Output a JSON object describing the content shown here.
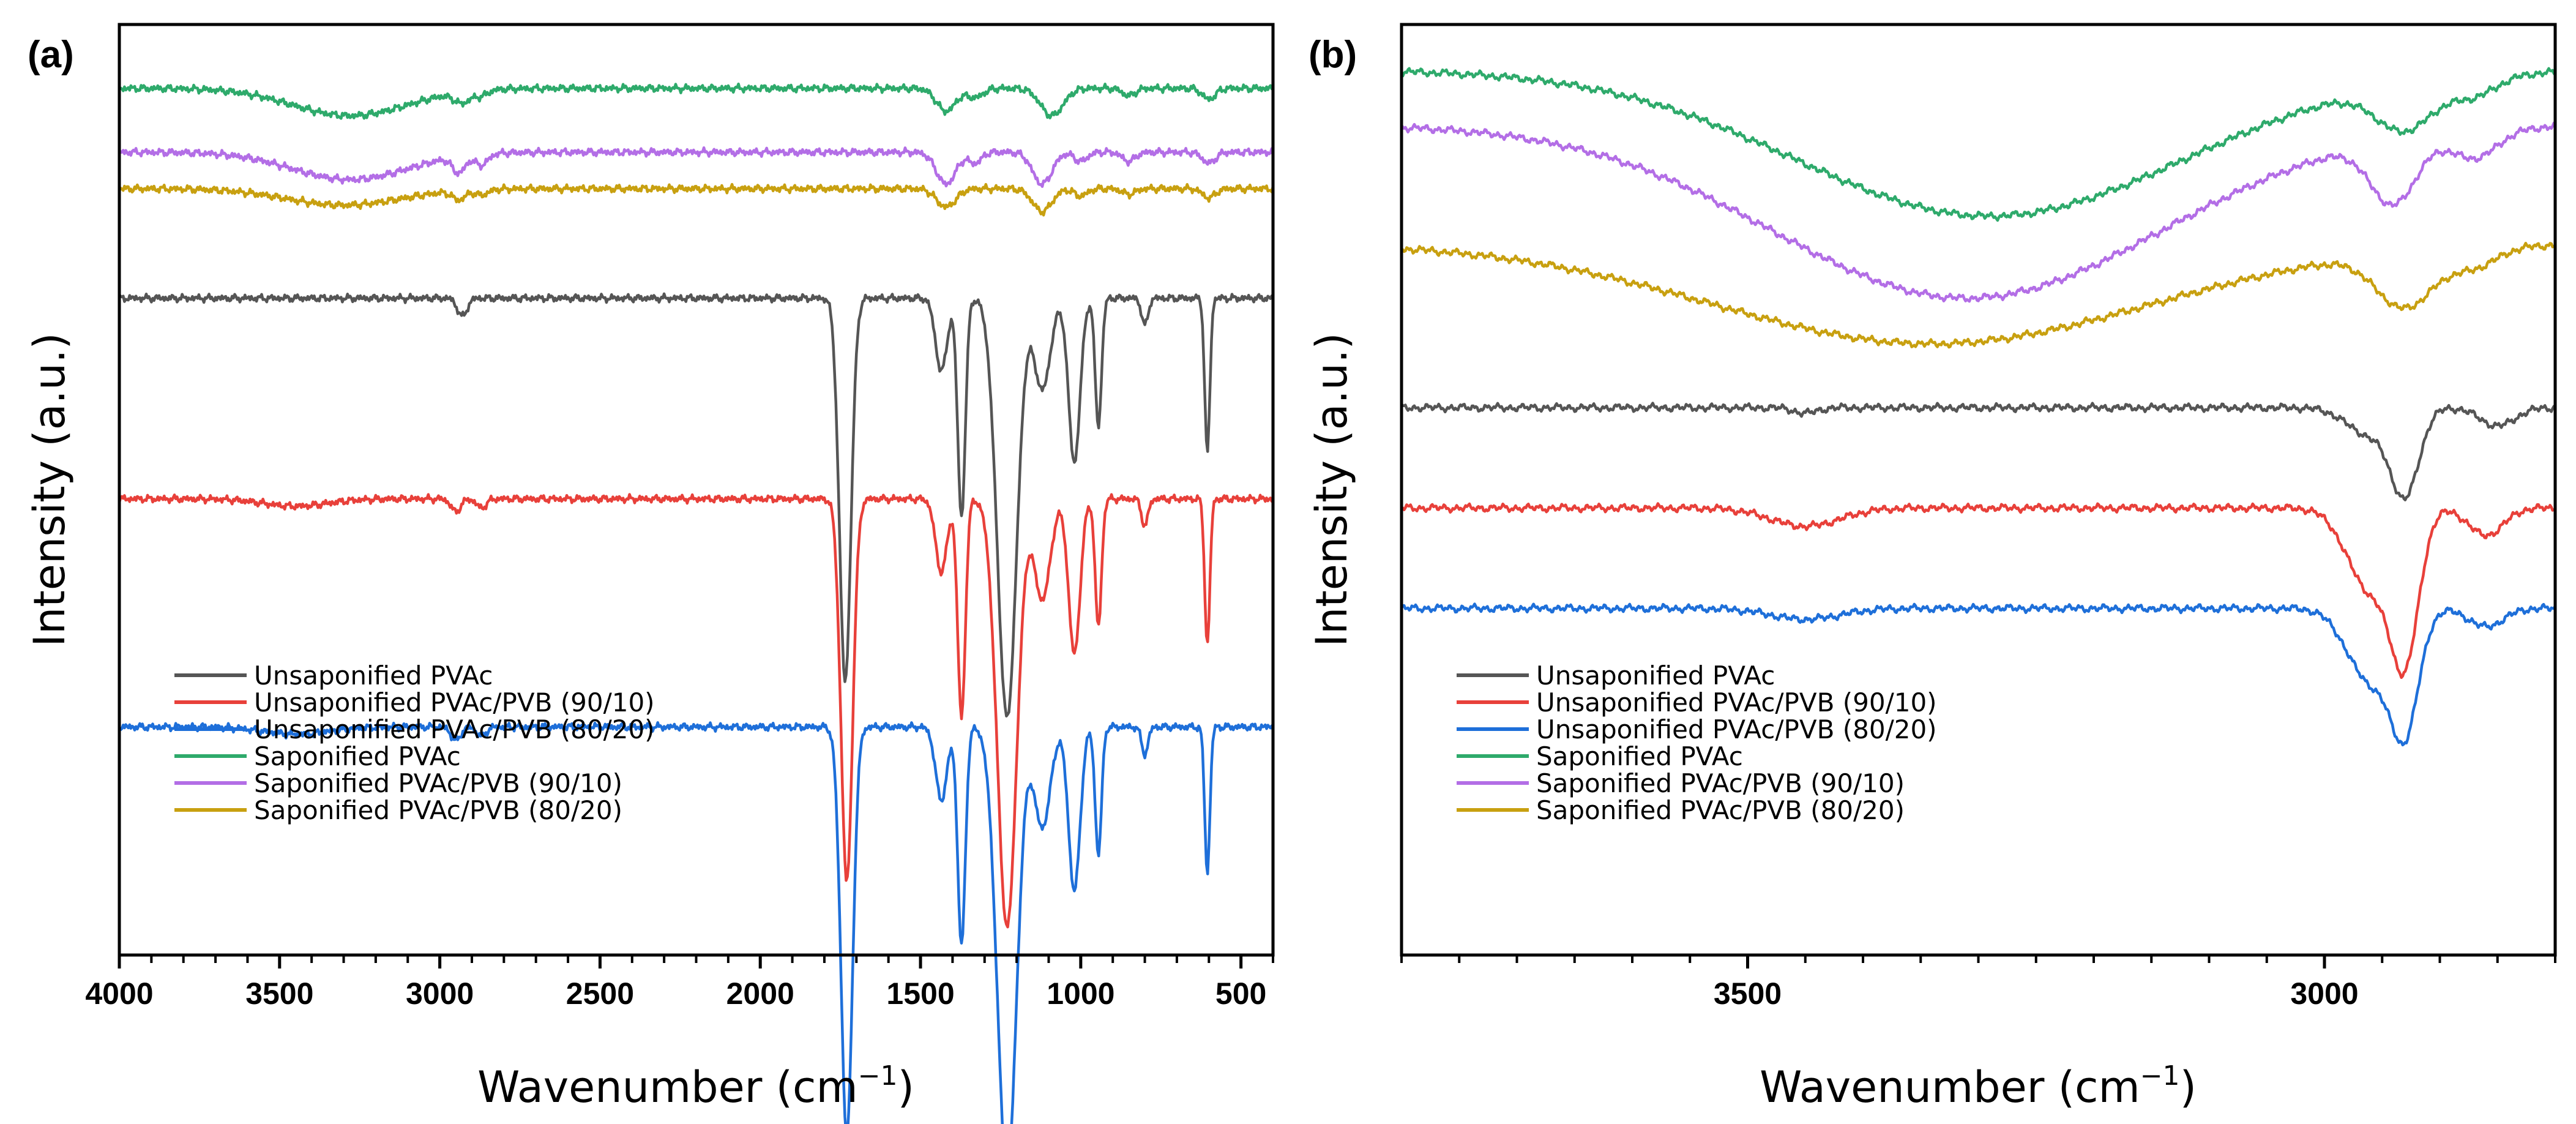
{
  "chart_data": [
    {
      "type": "line",
      "panel_label": "(a)",
      "xlabel": "Wavenumber (cm",
      "xlabel_sup": "−1",
      "xlabel_close": ")",
      "ylabel": "Intensity (a.u.)",
      "xlim": [
        4000,
        400
      ],
      "x_reversed": true,
      "major_ticks": [
        4000,
        3500,
        3000,
        2500,
        2000,
        1500,
        1000,
        500
      ],
      "tick_labels": [
        "4000",
        "3500",
        "3000",
        "2500",
        "2000",
        "1500",
        "1000",
        "500"
      ],
      "y_ticks_shown": false,
      "legend_position": "lower-left",
      "series": [
        {
          "name": "Unsaponified PVAc",
          "color": "#555555",
          "offset": 0.72,
          "bands": [
            [
              2930,
              0.02,
              15
            ],
            [
              1735,
              0.42,
              18
            ],
            [
              1435,
              0.08,
              18
            ],
            [
              1372,
              0.24,
              12
            ],
            [
              1230,
              0.46,
              30
            ],
            [
              1120,
              0.1,
              25
            ],
            [
              1020,
              0.18,
              18
            ],
            [
              945,
              0.14,
              10
            ],
            [
              800,
              0.03,
              10
            ],
            [
              605,
              0.17,
              8
            ]
          ]
        },
        {
          "name": "Unsaponified PVAc/PVB (90/10)",
          "color": "#e8403a",
          "offset": 0.5,
          "bands": [
            [
              3450,
              0.008,
              100
            ],
            [
              2950,
              0.014,
              15
            ],
            [
              2870,
              0.01,
              15
            ],
            [
              1730,
              0.42,
              18
            ],
            [
              1435,
              0.08,
              18
            ],
            [
              1372,
              0.24,
              12
            ],
            [
              1230,
              0.47,
              30
            ],
            [
              1120,
              0.11,
              25
            ],
            [
              1020,
              0.17,
              18
            ],
            [
              945,
              0.14,
              10
            ],
            [
              800,
              0.03,
              10
            ],
            [
              605,
              0.16,
              8
            ]
          ]
        },
        {
          "name": "Unsaponified PVAc/PVB (80/20)",
          "color": "#1e6fd9",
          "offset": 0.25,
          "bands": [
            [
              3450,
              0.008,
              100
            ],
            [
              2950,
              0.015,
              15
            ],
            [
              2870,
              0.01,
              15
            ],
            [
              1730,
              0.45,
              18
            ],
            [
              1435,
              0.08,
              18
            ],
            [
              1372,
              0.24,
              12
            ],
            [
              1230,
              0.49,
              30
            ],
            [
              1120,
              0.11,
              25
            ],
            [
              1020,
              0.18,
              18
            ],
            [
              945,
              0.14,
              10
            ],
            [
              800,
              0.03,
              10
            ],
            [
              605,
              0.16,
              8
            ]
          ]
        },
        {
          "name": "Saponified PVAc",
          "color": "#2eaa6b",
          "offset": 0.95,
          "bands": [
            [
              3280,
              0.03,
              180
            ],
            [
              2930,
              0.012,
              25
            ],
            [
              2870,
              0.006,
              20
            ],
            [
              1420,
              0.025,
              30
            ],
            [
              1330,
              0.01,
              25
            ],
            [
              1090,
              0.03,
              35
            ],
            [
              850,
              0.008,
              20
            ],
            [
              600,
              0.012,
              20
            ]
          ]
        },
        {
          "name": "Saponified PVAc/PVB (90/10)",
          "color": "#b36ee6",
          "offset": 0.88,
          "bands": [
            [
              3280,
              0.03,
              180
            ],
            [
              2940,
              0.018,
              20
            ],
            [
              2870,
              0.012,
              20
            ],
            [
              1420,
              0.035,
              30
            ],
            [
              1330,
              0.012,
              20
            ],
            [
              1120,
              0.035,
              30
            ],
            [
              1000,
              0.01,
              20
            ],
            [
              850,
              0.01,
              20
            ],
            [
              600,
              0.012,
              20
            ]
          ]
        },
        {
          "name": "Saponified PVAc/PVB (80/20)",
          "color": "#c8a010",
          "offset": 0.84,
          "bands": [
            [
              3300,
              0.018,
              180
            ],
            [
              2940,
              0.01,
              20
            ],
            [
              2870,
              0.006,
              20
            ],
            [
              1420,
              0.02,
              30
            ],
            [
              1120,
              0.025,
              30
            ],
            [
              1000,
              0.008,
              20
            ],
            [
              850,
              0.006,
              20
            ],
            [
              600,
              0.01,
              20
            ]
          ]
        }
      ]
    },
    {
      "type": "line",
      "panel_label": "(b)",
      "xlabel": "Wavenumber (cm",
      "xlabel_sup": "−1",
      "xlabel_close": ")",
      "ylabel": "Intensity (a.u.)",
      "xlim": [
        3800,
        2800
      ],
      "x_reversed": true,
      "major_ticks": [
        3500,
        3000
      ],
      "tick_labels": [
        "3500",
        "3000"
      ],
      "y_ticks_shown": false,
      "legend_position": "lower-left",
      "series": [
        {
          "name": "Unsaponified PVAc",
          "color": "#555555",
          "offset": 0.6,
          "bands": [
            [
              3450,
              0.006,
              10
            ],
            [
              2960,
              0.03,
              20
            ],
            [
              2930,
              0.09,
              12
            ],
            [
              2850,
              0.02,
              15
            ]
          ]
        },
        {
          "name": "Unsaponified PVAc/PVB (90/10)",
          "color": "#e8403a",
          "offset": 0.49,
          "bands": [
            [
              3450,
              0.02,
              30
            ],
            [
              2960,
              0.09,
              20
            ],
            [
              2930,
              0.15,
              12
            ],
            [
              2860,
              0.03,
              15
            ]
          ]
        },
        {
          "name": "Unsaponified PVAc/PVB (80/20)",
          "color": "#1e6fd9",
          "offset": 0.38,
          "bands": [
            [
              3450,
              0.012,
              30
            ],
            [
              2960,
              0.08,
              20
            ],
            [
              2930,
              0.12,
              12
            ],
            [
              2860,
              0.02,
              15
            ]
          ]
        },
        {
          "name": "Saponified PVAc",
          "color": "#2eaa6b",
          "offset": 0.97,
          "bands": [
            [
              3290,
              0.16,
              170
            ],
            [
              2930,
              0.05,
              25
            ],
            [
              2870,
              0.02,
              20
            ]
          ]
        },
        {
          "name": "Saponified PVAc/PVB (90/10)",
          "color": "#b36ee6",
          "offset": 0.91,
          "bands": [
            [
              3310,
              0.19,
              170
            ],
            [
              2940,
              0.07,
              20
            ],
            [
              2870,
              0.03,
              20
            ]
          ]
        },
        {
          "name": "Saponified PVAc/PVB (80/20)",
          "color": "#c8a010",
          "offset": 0.78,
          "bands": [
            [
              3340,
              0.11,
              190
            ],
            [
              2930,
              0.06,
              25
            ],
            [
              2870,
              0.02,
              20
            ]
          ]
        }
      ]
    }
  ]
}
